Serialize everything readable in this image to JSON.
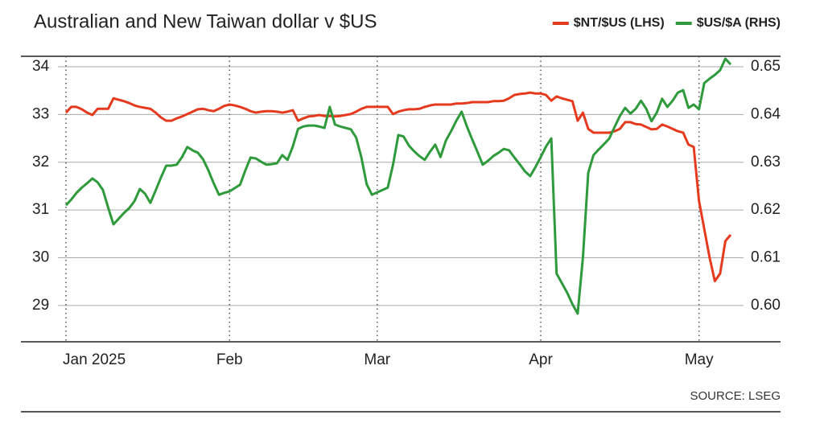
{
  "chart_data": {
    "type": "line",
    "title": "Australian and New Taiwan dollar v $US",
    "source": "SOURCE: LSEG",
    "legend": "top-right",
    "grid": true,
    "categories": [
      "Jan 2025",
      null,
      null,
      null,
      null,
      null,
      null,
      null,
      null,
      null,
      null,
      null,
      null,
      null,
      null,
      null,
      null,
      null,
      null,
      null,
      null,
      null,
      null,
      null,
      null,
      null,
      null,
      null,
      null,
      null,
      null,
      "Feb",
      null,
      null,
      null,
      null,
      null,
      null,
      null,
      null,
      null,
      null,
      null,
      null,
      null,
      null,
      null,
      null,
      null,
      null,
      null,
      null,
      null,
      null,
      null,
      null,
      null,
      null,
      null,
      "Mar",
      null,
      null,
      null,
      null,
      null,
      null,
      null,
      null,
      null,
      null,
      null,
      null,
      null,
      null,
      null,
      null,
      null,
      null,
      null,
      null,
      null,
      null,
      null,
      null,
      null,
      null,
      null,
      null,
      null,
      null,
      "Apr",
      null,
      null,
      null,
      null,
      null,
      null,
      null,
      null,
      null,
      null,
      null,
      null,
      null,
      null,
      null,
      null,
      null,
      null,
      null,
      null,
      null,
      null,
      null,
      null,
      null,
      null,
      null,
      null,
      null,
      "May",
      null,
      null,
      null,
      null,
      null,
      null
    ],
    "ylim": [
      28.24,
      34.22
    ],
    "yticks": [
      29,
      30,
      31,
      32,
      33,
      34
    ],
    "y2lim": [
      0.5924,
      0.6522
    ],
    "y2ticks": [
      {
        "value": 0.6,
        "label": "0.60"
      },
      0.61,
      0.62,
      0.63,
      0.64,
      0.65
    ],
    "series": [
      {
        "name": "$NT/$US (LHS)",
        "color": "#e63a1f",
        "values": [
          33.04,
          33.16,
          33.16,
          33.11,
          33.04,
          32.99,
          33.12,
          33.12,
          33.12,
          33.34,
          33.31,
          33.28,
          33.24,
          33.19,
          33.16,
          33.14,
          33.12,
          33.04,
          32.94,
          32.87,
          32.87,
          32.92,
          32.96,
          33.01,
          33.06,
          33.11,
          33.12,
          33.09,
          33.07,
          33.12,
          33.18,
          33.21,
          33.19,
          33.16,
          33.12,
          33.07,
          33.04,
          33.06,
          33.07,
          33.07,
          33.06,
          33.04,
          33.06,
          33.09,
          32.87,
          32.92,
          32.96,
          32.97,
          32.99,
          32.97,
          32.97,
          32.96,
          32.97,
          32.99,
          33.01,
          33.06,
          33.12,
          33.16,
          33.16,
          33.16,
          33.16,
          33.16,
          33.01,
          33.06,
          33.09,
          33.11,
          33.11,
          33.12,
          33.16,
          33.19,
          33.21,
          33.21,
          33.21,
          33.21,
          33.23,
          33.23,
          33.24,
          33.26,
          33.26,
          33.26,
          33.26,
          33.28,
          33.28,
          33.29,
          33.34,
          33.41,
          33.43,
          33.44,
          33.46,
          33.44,
          33.44,
          33.41,
          33.29,
          33.38,
          33.34,
          33.31,
          33.28,
          32.87,
          33.04,
          32.7,
          32.62,
          32.62,
          32.62,
          32.62,
          32.65,
          32.7,
          32.84,
          32.84,
          32.8,
          32.79,
          32.74,
          32.69,
          32.7,
          32.79,
          32.75,
          32.7,
          32.65,
          32.62,
          32.37,
          32.32,
          31.19,
          30.6,
          30.01,
          29.51,
          29.67,
          30.35,
          30.48
        ]
      },
      {
        "name": "$US/$A (RHS)",
        "color": "#2e9a3b",
        "axis": "y2",
        "values": [
          0.621,
          0.6222,
          0.6236,
          0.6247,
          0.6256,
          0.6266,
          0.6258,
          0.6242,
          0.6205,
          0.617,
          0.6182,
          0.6194,
          0.6204,
          0.6219,
          0.6244,
          0.6234,
          0.6215,
          0.6241,
          0.6268,
          0.6293,
          0.6293,
          0.6295,
          0.6311,
          0.6332,
          0.6325,
          0.632,
          0.6306,
          0.6283,
          0.6256,
          0.6232,
          0.6236,
          0.6239,
          0.6246,
          0.6253,
          0.6283,
          0.631,
          0.6308,
          0.6301,
          0.6295,
          0.6296,
          0.6298,
          0.6315,
          0.6305,
          0.6333,
          0.637,
          0.6375,
          0.6377,
          0.6377,
          0.6375,
          0.6372,
          0.6416,
          0.6379,
          0.6375,
          0.6372,
          0.6369,
          0.6352,
          0.631,
          0.6254,
          0.6232,
          0.6237,
          0.6242,
          0.6247,
          0.6295,
          0.6357,
          0.6354,
          0.6335,
          0.6323,
          0.6313,
          0.6305,
          0.6322,
          0.6337,
          0.6311,
          0.6345,
          0.6365,
          0.6387,
          0.6406,
          0.6375,
          0.6348,
          0.6322,
          0.6295,
          0.6303,
          0.6313,
          0.632,
          0.6328,
          0.6325,
          0.631,
          0.6296,
          0.6281,
          0.6271,
          0.629,
          0.6311,
          0.6333,
          0.635,
          0.6067,
          0.6047,
          0.6027,
          0.6003,
          0.5983,
          0.6101,
          0.6278,
          0.6315,
          0.6327,
          0.6338,
          0.635,
          0.6374,
          0.6397,
          0.6414,
          0.6402,
          0.6412,
          0.6429,
          0.6412,
          0.6386,
          0.6404,
          0.6433,
          0.6416,
          0.6429,
          0.6446,
          0.6451,
          0.6414,
          0.6421,
          0.6411,
          0.6466,
          0.6475,
          0.6483,
          0.6493,
          0.6517,
          0.6505
        ]
      }
    ]
  }
}
